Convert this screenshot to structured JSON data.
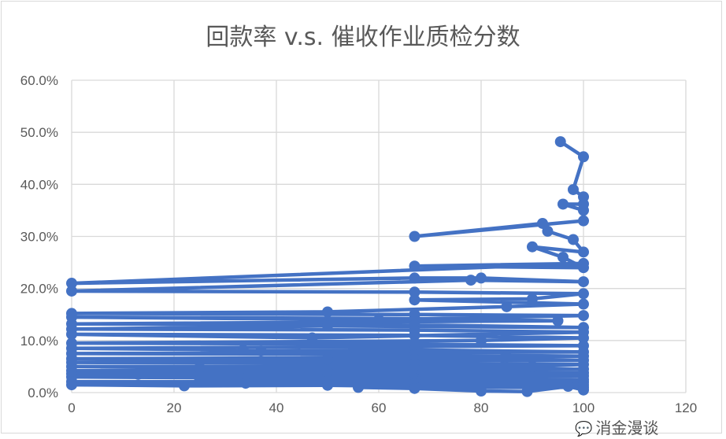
{
  "chart_data": {
    "type": "line",
    "title": "回款率 v.s. 催收作业质检分数",
    "xlabel": "",
    "ylabel": "",
    "xlim": [
      0,
      120
    ],
    "ylim": [
      0,
      60
    ],
    "x_ticks": [
      "0",
      "20",
      "40",
      "60",
      "80",
      "100",
      "120"
    ],
    "y_ticks": [
      "0.0%",
      "10.0%",
      "20.0%",
      "30.0%",
      "40.0%",
      "50.0%",
      "60.0%"
    ],
    "grid": true,
    "color": "#4472C4",
    "markers": true,
    "series": [
      {
        "points": [
          [
            95.5,
            48.2
          ],
          [
            100,
            45.3
          ],
          [
            98,
            39
          ],
          [
            100,
            37.6
          ],
          [
            100,
            36.2
          ],
          [
            96,
            36.2
          ],
          [
            100,
            35
          ],
          [
            100,
            33
          ],
          [
            67,
            30
          ],
          [
            92,
            32.5
          ],
          [
            93,
            31
          ],
          [
            98,
            29.4
          ],
          [
            100,
            27
          ],
          [
            90,
            28
          ],
          [
            96,
            26
          ],
          [
            100,
            24
          ],
          [
            67,
            24.3
          ],
          [
            100,
            24.8
          ],
          [
            0,
            21
          ],
          [
            67,
            22
          ],
          [
            80,
            22
          ],
          [
            100,
            21.3
          ],
          [
            78,
            21.6
          ],
          [
            0,
            19.5
          ],
          [
            67,
            19.3
          ],
          [
            100,
            19
          ],
          [
            90,
            18
          ],
          [
            67,
            17.8
          ],
          [
            100,
            17
          ],
          [
            85,
            16.5
          ],
          [
            50,
            15.5
          ],
          [
            0,
            15.2
          ],
          [
            67,
            15
          ],
          [
            100,
            14.8
          ],
          [
            60,
            14
          ],
          [
            0,
            14.5
          ],
          [
            67,
            14.2
          ],
          [
            95,
            13.8
          ],
          [
            0,
            13.2
          ],
          [
            67,
            13
          ],
          [
            100,
            12.5
          ],
          [
            50,
            12.8
          ],
          [
            0,
            12.2
          ],
          [
            67,
            12
          ],
          [
            100,
            11.6
          ],
          [
            47,
            10.5
          ],
          [
            0,
            11.2
          ],
          [
            67,
            11
          ],
          [
            100,
            10.5
          ],
          [
            80,
            10
          ],
          [
            0,
            9.5
          ],
          [
            67,
            9.3
          ],
          [
            100,
            9
          ],
          [
            55,
            8.8
          ],
          [
            0,
            8.5
          ],
          [
            33.5,
            8.2
          ],
          [
            37,
            8
          ],
          [
            67,
            8.2
          ],
          [
            100,
            7.8
          ],
          [
            0,
            7.5
          ],
          [
            67,
            7.3
          ],
          [
            100,
            7
          ],
          [
            85,
            6.8
          ],
          [
            0,
            6.5
          ],
          [
            50,
            6.4
          ],
          [
            67,
            6.5
          ],
          [
            100,
            6.2
          ],
          [
            0,
            5.8
          ],
          [
            67,
            5.6
          ],
          [
            100,
            5.4
          ],
          [
            90,
            5
          ],
          [
            0,
            5
          ],
          [
            25,
            4.8
          ],
          [
            67,
            4.7
          ],
          [
            100,
            4.5
          ],
          [
            0,
            4.2
          ],
          [
            50,
            4
          ],
          [
            67,
            4.1
          ],
          [
            100,
            3.8
          ],
          [
            0,
            3.6
          ],
          [
            13,
            3.5
          ],
          [
            67,
            3.4
          ],
          [
            100,
            3.2
          ],
          [
            0,
            3
          ],
          [
            33,
            2.8
          ],
          [
            67,
            2.7
          ],
          [
            100,
            2.5
          ],
          [
            25,
            2.3
          ],
          [
            67,
            2.2
          ],
          [
            100,
            2
          ],
          [
            0,
            2.1
          ],
          [
            34,
            1.8
          ],
          [
            67,
            1.7
          ],
          [
            100,
            1.5
          ],
          [
            0,
            1.5
          ],
          [
            22,
            1.3
          ],
          [
            50,
            1.4
          ],
          [
            67,
            1.2
          ],
          [
            100,
            1
          ],
          [
            56,
            1
          ],
          [
            67,
            0.8
          ],
          [
            80,
            0.3
          ],
          [
            89,
            0.2
          ],
          [
            97,
            1.2
          ],
          [
            100,
            0.5
          ]
        ]
      }
    ]
  },
  "watermark": "消金漫谈"
}
